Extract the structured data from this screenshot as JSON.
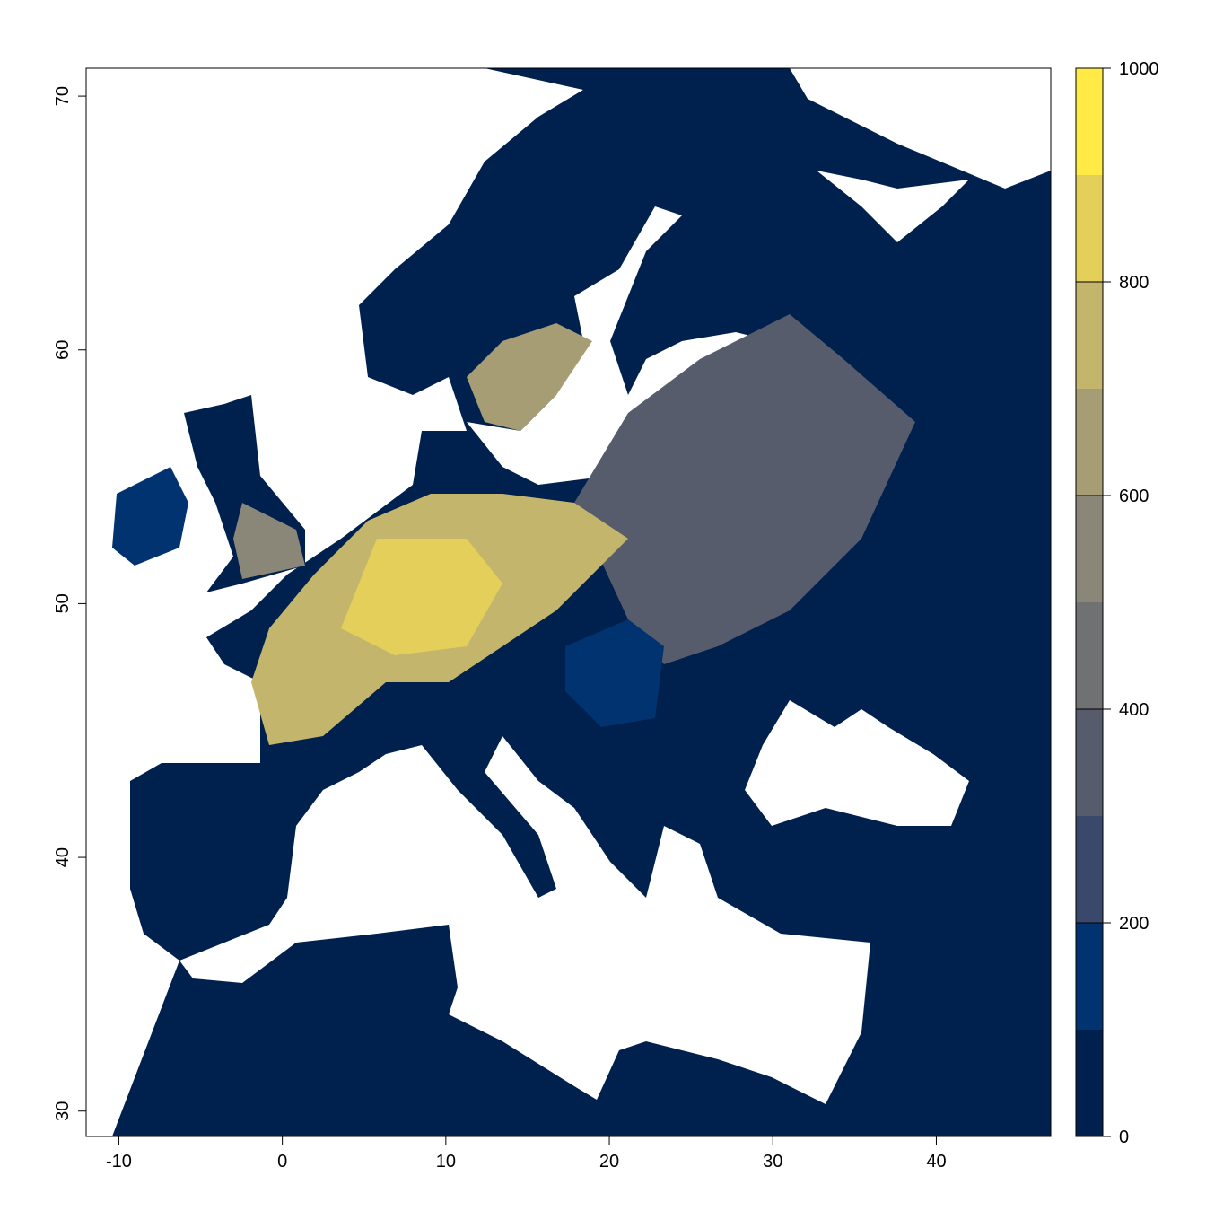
{
  "chart_data": {
    "type": "raster",
    "xlim": [
      -12,
      47
    ],
    "ylim": [
      29,
      71.1
    ],
    "xticks": [
      -10,
      0,
      10,
      20,
      30,
      40
    ],
    "yticks": [
      30,
      40,
      50,
      60,
      70
    ],
    "colorbar": {
      "lim": [
        0,
        1000
      ],
      "ticks": [
        0,
        200,
        400,
        600,
        800,
        1000
      ],
      "breaks": [
        0,
        100,
        200,
        300,
        400,
        500,
        600,
        700,
        800,
        900,
        1000
      ],
      "colors": [
        "#00204d",
        "#00336f",
        "#39486b",
        "#575c6d",
        "#707173",
        "#8a8779",
        "#a69d75",
        "#c4b56c",
        "#e4cf5b",
        "#ffea46"
      ]
    }
  }
}
